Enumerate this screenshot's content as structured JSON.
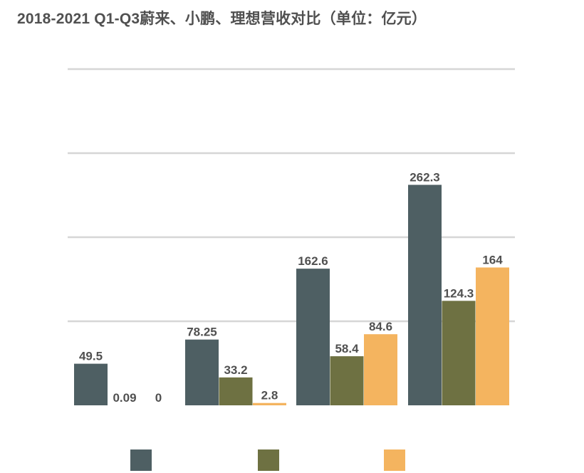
{
  "chart_data": {
    "type": "bar",
    "title": "2018-2021 Q1-Q3蔚来、小鹏、理想营收对比（单位：亿元）",
    "categories": [
      "",
      "",
      "",
      ""
    ],
    "series": [
      {
        "color": "#4e5f63",
        "values": [
          49.5,
          78.25,
          162.6,
          262.3
        ],
        "labels": [
          "49.5",
          "78.25",
          "162.6",
          "262.3"
        ]
      },
      {
        "color": "#6e7142",
        "values": [
          0.09,
          33.2,
          58.4,
          124.3
        ],
        "labels": [
          "0.09",
          "33.2",
          "58.4",
          "124.3"
        ]
      },
      {
        "color": "#f4b45f",
        "values": [
          0,
          2.8,
          84.6,
          164
        ],
        "labels": [
          "0",
          "2.8",
          "84.6",
          "164"
        ]
      }
    ],
    "ylim": [
      0,
      400
    ],
    "ygrid_step": 100,
    "grid": true,
    "legend_position": "bottom",
    "xlabel": "",
    "ylabel": ""
  }
}
